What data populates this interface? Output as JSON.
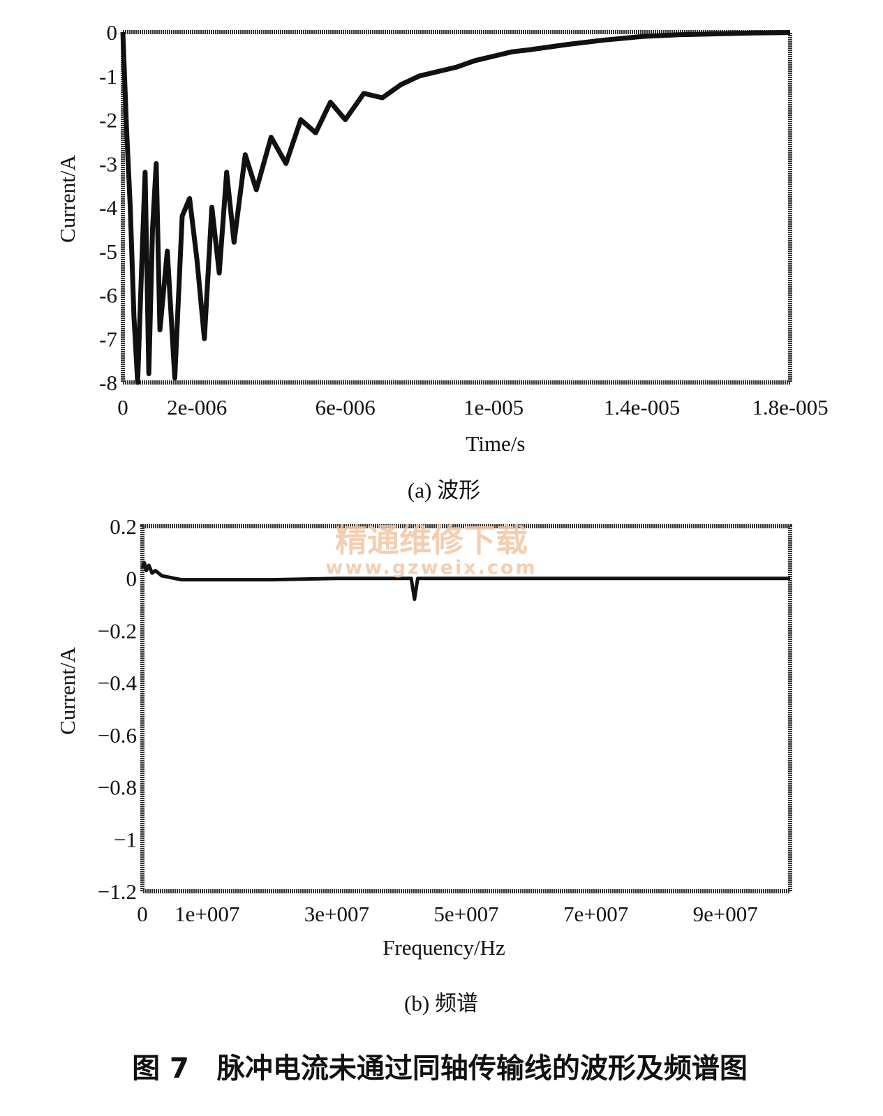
{
  "figure_title": "图 7　脉冲电流未通过同轴传输线的波形及频谱图",
  "watermark": {
    "line1": "精通维修下载",
    "line2": "www.gzweix.com"
  },
  "chart_data": [
    {
      "type": "line",
      "subplot": "a",
      "caption": "(a) 波形",
      "xlabel": "Time/s",
      "ylabel": "Current/A",
      "xlim": [
        0,
        1.8e-05
      ],
      "ylim": [
        -8,
        0
      ],
      "xticks": [
        {
          "value": 0,
          "label": "0"
        },
        {
          "value": 2e-06,
          "label": "2e-006"
        },
        {
          "value": 6e-06,
          "label": "6e-006"
        },
        {
          "value": 1e-05,
          "label": "1e-005"
        },
        {
          "value": 1.4e-05,
          "label": "1.4e-005"
        },
        {
          "value": 1.8e-05,
          "label": "1.8e-005"
        }
      ],
      "yticks": [
        {
          "value": 0,
          "label": "0"
        },
        {
          "value": -1,
          "label": "-1"
        },
        {
          "value": -2,
          "label": "-2"
        },
        {
          "value": -3,
          "label": "-3"
        },
        {
          "value": -4,
          "label": "-4"
        },
        {
          "value": -5,
          "label": "-5"
        },
        {
          "value": -6,
          "label": "-6"
        },
        {
          "value": -7,
          "label": "-7"
        },
        {
          "value": -8,
          "label": "-8"
        }
      ],
      "grid": false,
      "line_color": "#111111",
      "series": [
        {
          "x": [
            0,
            1e-07,
            2e-07,
            3e-07,
            4e-07,
            5e-07,
            6e-07,
            7e-07,
            8e-07,
            9e-07,
            1e-06,
            1.2e-06,
            1.4e-06,
            1.6e-06,
            1.8e-06,
            2e-06,
            2.2e-06,
            2.4e-06,
            2.6e-06,
            2.8e-06,
            3e-06,
            3.3e-06,
            3.6e-06,
            4e-06,
            4.4e-06,
            4.8e-06,
            5.2e-06,
            5.6e-06,
            6e-06,
            6.5e-06,
            7e-06,
            7.5e-06,
            8e-06,
            8.5e-06,
            9e-06,
            9.5e-06,
            1e-05,
            1.05e-05,
            1.1e-05,
            1.2e-05,
            1.3e-05,
            1.4e-05,
            1.5e-05,
            1.6e-05,
            1.7e-05,
            1.8e-05
          ],
          "y": [
            0,
            -2.2,
            -4.0,
            -6.5,
            -8.0,
            -5.5,
            -3.2,
            -7.8,
            -4.5,
            -3.0,
            -6.8,
            -5.0,
            -7.9,
            -4.2,
            -3.8,
            -5.2,
            -7.0,
            -4.0,
            -5.5,
            -3.2,
            -4.8,
            -2.8,
            -3.6,
            -2.4,
            -3.0,
            -2.0,
            -2.3,
            -1.6,
            -2.0,
            -1.4,
            -1.5,
            -1.2,
            -1.0,
            -0.9,
            -0.8,
            -0.65,
            -0.55,
            -0.45,
            -0.4,
            -0.28,
            -0.18,
            -0.1,
            -0.06,
            -0.04,
            -0.02,
            -0.01
          ]
        }
      ]
    },
    {
      "type": "line",
      "subplot": "b",
      "caption": "(b) 频谱",
      "xlabel": "Frequency/Hz",
      "ylabel": "Current/A",
      "xlim": [
        0,
        100000000.0
      ],
      "ylim": [
        -1.2,
        0.2
      ],
      "xticks": [
        {
          "value": 0,
          "label": "0"
        },
        {
          "value": 10000000.0,
          "label": "1e+007"
        },
        {
          "value": 30000000.0,
          "label": "3e+007"
        },
        {
          "value": 50000000.0,
          "label": "5e+007"
        },
        {
          "value": 70000000.0,
          "label": "7e+007"
        },
        {
          "value": 90000000.0,
          "label": "9e+007"
        }
      ],
      "yticks": [
        {
          "value": 0.2,
          "label": "0.2"
        },
        {
          "value": 0,
          "label": "0"
        },
        {
          "value": -0.2,
          "label": "−0.2"
        },
        {
          "value": -0.4,
          "label": "−0.4"
        },
        {
          "value": -0.6,
          "label": "−0.6"
        },
        {
          "value": -0.8,
          "label": "−0.8"
        },
        {
          "value": -1,
          "label": "−1"
        },
        {
          "value": -1.2,
          "label": "−1.2"
        }
      ],
      "grid": false,
      "line_color": "#111111",
      "series": [
        {
          "x": [
            0,
            300000.0,
            600000.0,
            1000000.0,
            1500000.0,
            2000000.0,
            3000000.0,
            4000000.0,
            6000000.0,
            10000000.0,
            20000000.0,
            30000000.0,
            38000000.0,
            41500000.0,
            42000000.0,
            42500000.0,
            43000000.0,
            50000000.0,
            70000000.0,
            90000000.0,
            100000000.0
          ],
          "y": [
            0.04,
            0.06,
            0.03,
            0.05,
            0.02,
            0.03,
            0.01,
            0.005,
            -0.005,
            -0.005,
            -0.005,
            0.0,
            0.0,
            0.0,
            -0.08,
            0.0,
            0.0,
            0.0,
            0.0,
            0.0,
            0.0
          ]
        }
      ]
    }
  ]
}
